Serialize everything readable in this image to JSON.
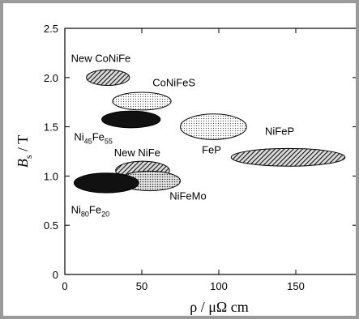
{
  "chart_data": {
    "type": "scatter",
    "xlabel": "ρ / μΩ cm",
    "ylabel": "Bs / T",
    "ylabel_main": "B",
    "ylabel_sub": "s",
    "ylabel_unit": " / T",
    "xlim": [
      0,
      190
    ],
    "ylim": [
      0,
      2.5
    ],
    "xticks": [
      0,
      50,
      100,
      150
    ],
    "yticks": [
      0,
      0.5,
      1.0,
      1.5,
      2.0,
      2.5
    ],
    "xtick_labels": [
      "0",
      "50",
      "100",
      "150"
    ],
    "ytick_labels": [
      "0",
      "0.5",
      "1.0",
      "1.5",
      "2.0",
      "2.5"
    ],
    "grid": false,
    "materials": [
      {
        "name": "New CoNiFe",
        "rho_range": [
          14,
          42
        ],
        "bs_range": [
          1.92,
          2.08
        ],
        "fill": "hatch-dense"
      },
      {
        "name": "CoNiFeS",
        "rho_range": [
          31,
          69
        ],
        "bs_range": [
          1.67,
          1.85
        ],
        "fill": "dots-light"
      },
      {
        "name": "Ni45Fe55",
        "rho_range": [
          24,
          62
        ],
        "bs_range": [
          1.49,
          1.66
        ],
        "fill": "solid-dark"
      },
      {
        "name": "FeP",
        "rho_range": [
          75,
          118
        ],
        "bs_range": [
          1.37,
          1.63
        ],
        "fill": "dots-light"
      },
      {
        "name": "NiFeP",
        "rho_range": [
          108,
          182
        ],
        "bs_range": [
          1.1,
          1.28
        ],
        "fill": "hatch-dense"
      },
      {
        "name": "New NiFe",
        "rho_range": [
          33,
          68
        ],
        "bs_range": [
          0.96,
          1.15
        ],
        "fill": "hatch-dense"
      },
      {
        "name": "NiFeMo",
        "rho_range": [
          35,
          75
        ],
        "bs_range": [
          0.85,
          1.05
        ],
        "fill": "dots-dark"
      },
      {
        "name": "Ni80Fe20",
        "rho_range": [
          6,
          48
        ],
        "bs_range": [
          0.83,
          1.03
        ],
        "fill": "solid-dark"
      }
    ],
    "annotations": [
      {
        "key": "new_conife",
        "parts": [
          {
            "t": "New CoNiFe"
          }
        ],
        "x": 4,
        "y": 2.16
      },
      {
        "key": "conifes",
        "parts": [
          {
            "t": "CoNiFeS"
          }
        ],
        "x": 57,
        "y": 1.91
      },
      {
        "key": "ni45fe55",
        "parts": [
          {
            "t": "Ni"
          },
          {
            "t": "45",
            "sub": true
          },
          {
            "t": "Fe"
          },
          {
            "t": "55",
            "sub": true
          }
        ],
        "x": 6,
        "y": 1.36
      },
      {
        "key": "fep",
        "parts": [
          {
            "t": "FeP"
          }
        ],
        "x": 89,
        "y": 1.23
      },
      {
        "key": "nifep",
        "parts": [
          {
            "t": "NiFeP"
          }
        ],
        "x": 130,
        "y": 1.42
      },
      {
        "key": "new_nife",
        "parts": [
          {
            "t": "New NiFe"
          }
        ],
        "x": 32,
        "y": 1.2
      },
      {
        "key": "nifemo",
        "parts": [
          {
            "t": "NiFeMo"
          }
        ],
        "x": 68,
        "y": 0.76
      },
      {
        "key": "ni80fe20",
        "parts": [
          {
            "t": "Ni"
          },
          {
            "t": "80",
            "sub": true
          },
          {
            "t": "Fe"
          },
          {
            "t": "20",
            "sub": true
          }
        ],
        "x": 4,
        "y": 0.62
      }
    ]
  }
}
